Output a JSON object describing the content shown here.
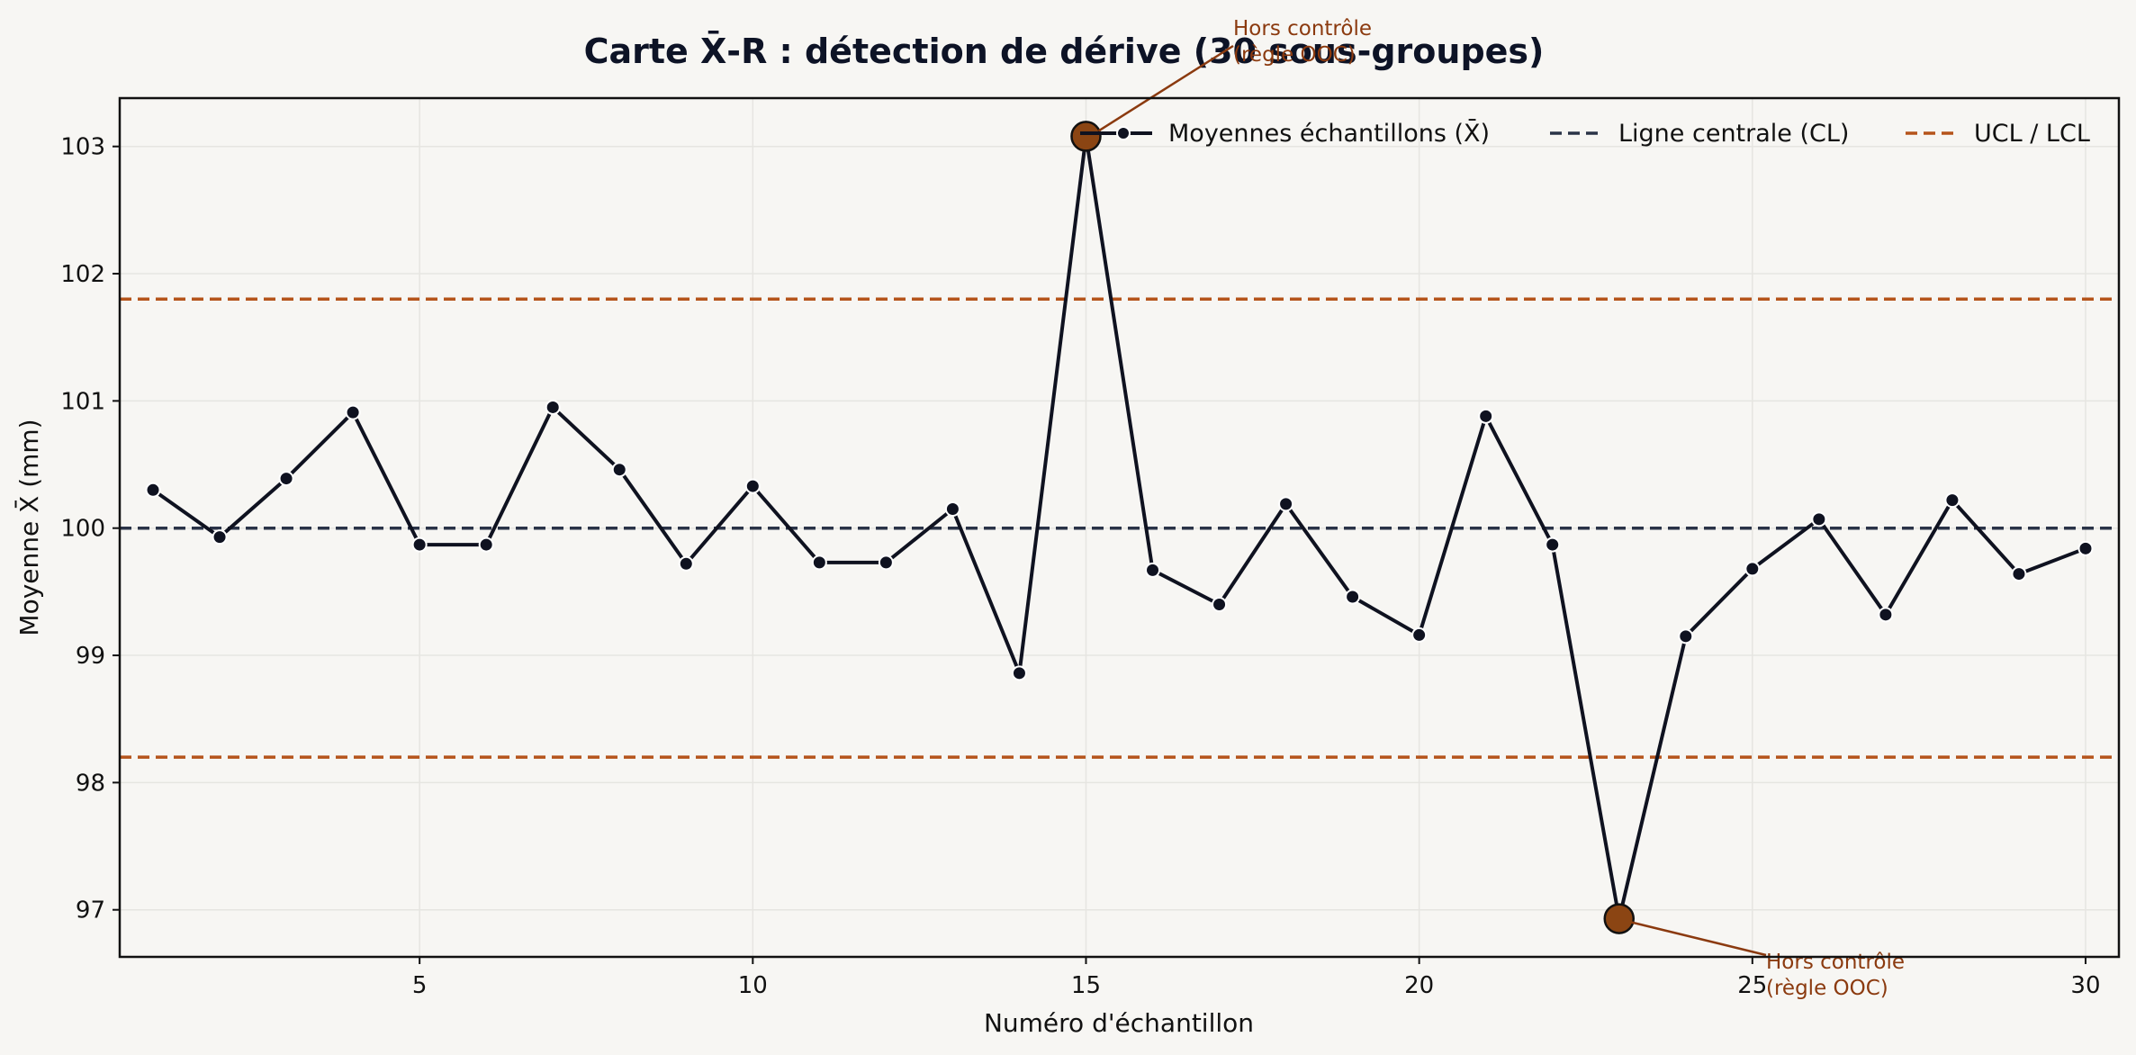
{
  "chart_data": {
    "type": "line",
    "title": "Carte X̄-R : détection de dérive (30 sous-groupes)",
    "xlabel": "Numéro d'échantillon",
    "ylabel": "Moyenne X̄ (mm)",
    "xlim": [
      0.5,
      30.5
    ],
    "ylim": [
      96.63,
      103.38
    ],
    "xticks": [
      5,
      10,
      15,
      20,
      25,
      30
    ],
    "yticks": [
      97,
      98,
      99,
      100,
      101,
      102,
      103
    ],
    "grid": true,
    "legend_position": "top-right",
    "series": [
      {
        "name": "Moyennes échantillons (X̄)",
        "x": [
          1,
          2,
          3,
          4,
          5,
          6,
          7,
          8,
          9,
          10,
          11,
          12,
          13,
          14,
          15,
          16,
          17,
          18,
          19,
          20,
          21,
          22,
          23,
          24,
          25,
          26,
          27,
          28,
          29,
          30
        ],
        "values": [
          100.3,
          99.93,
          100.39,
          100.91,
          99.87,
          99.87,
          100.95,
          100.46,
          99.72,
          100.33,
          99.73,
          99.73,
          100.15,
          98.86,
          103.08,
          99.67,
          99.4,
          100.19,
          99.46,
          99.16,
          100.88,
          99.87,
          96.93,
          99.15,
          99.68,
          100.07,
          99.32,
          100.22,
          99.64,
          99.84
        ]
      },
      {
        "name": "Ligne centrale (CL)",
        "value": 100.0
      },
      {
        "name": "UCL / LCL",
        "ucl": 101.8,
        "lcl": 98.2
      }
    ],
    "out_of_control": [
      {
        "x": 15,
        "y": 103.08,
        "label": "Hors contrôle\n(règle OOC)"
      },
      {
        "x": 23,
        "y": 96.93,
        "label": "Hors contrôle\n(règle OOC)"
      }
    ],
    "colors": {
      "background": "#f7f6f3",
      "line": "#0f1220",
      "center_line": "#2a3347",
      "limits": "#b5541b",
      "ooc_marker": "#8b4513",
      "annotation": "#8b3a0f",
      "grid": "#e6e5e1"
    }
  }
}
